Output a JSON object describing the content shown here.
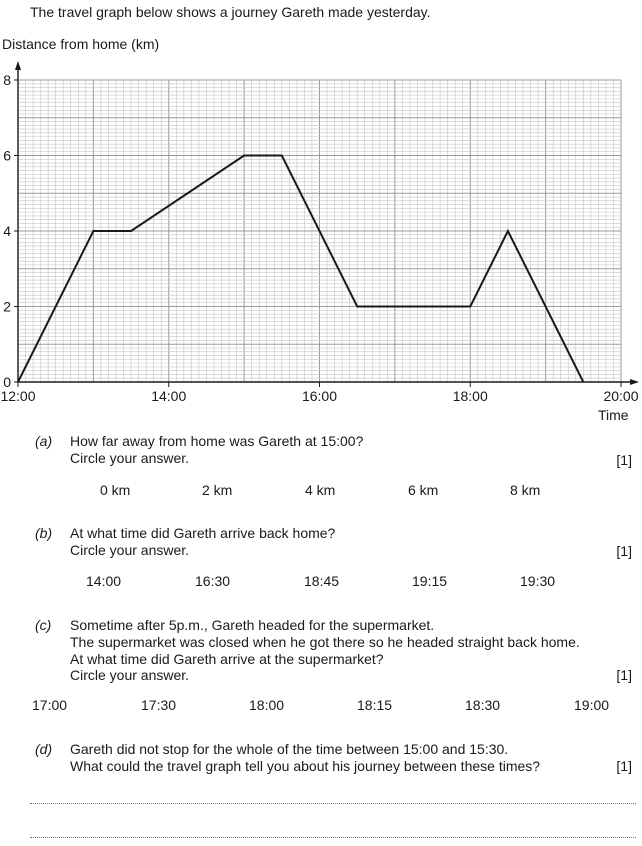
{
  "intro": "The travel graph below shows a journey Gareth made yesterday.",
  "chart_data": {
    "type": "line",
    "title": "",
    "ylabel": "Distance from home (km)",
    "xlabel": "Time",
    "x_ticks": [
      "12:00",
      "14:00",
      "16:00",
      "18:00",
      "20:00"
    ],
    "y_ticks": [
      "0",
      "2",
      "4",
      "6",
      "8"
    ],
    "xlim": [
      "12:00",
      "20:00"
    ],
    "ylim": [
      0,
      8
    ],
    "grid": true,
    "series": [
      {
        "points": [
          {
            "x": "12:00",
            "y": 0
          },
          {
            "x": "13:00",
            "y": 4
          },
          {
            "x": "13:30",
            "y": 4
          },
          {
            "x": "15:00",
            "y": 6
          },
          {
            "x": "15:30",
            "y": 6
          },
          {
            "x": "16:30",
            "y": 2
          },
          {
            "x": "18:00",
            "y": 2
          },
          {
            "x": "18:30",
            "y": 4
          },
          {
            "x": "19:30",
            "y": 0
          }
        ]
      }
    ]
  },
  "questions": [
    {
      "label": "(a)",
      "lines": [
        "How far away from home was Gareth at 15:00?",
        "Circle your answer."
      ],
      "marks": "[1]",
      "options": [
        "0 km",
        "2 km",
        "4 km",
        "6 km",
        "8 km"
      ]
    },
    {
      "label": "(b)",
      "lines": [
        "At what time did Gareth arrive back home?",
        "Circle your answer."
      ],
      "marks": "[1]",
      "options": [
        "14:00",
        "16:30",
        "18:45",
        "19:15",
        "19:30"
      ]
    },
    {
      "label": "(c)",
      "lines": [
        "Sometime after 5p.m., Gareth headed for the supermarket.",
        "The supermarket was closed when he got there so he headed straight back home.",
        "At what time did Gareth arrive at the supermarket?",
        "Circle your answer."
      ],
      "marks": "[1]",
      "options": [
        "17:00",
        "17:30",
        "18:00",
        "18:15",
        "18:30",
        "19:00"
      ]
    },
    {
      "label": "(d)",
      "lines": [
        "Gareth did not stop for the whole of the time between 15:00 and 15:30.",
        "What could the travel graph tell you about his journey between these times?"
      ],
      "marks": "[1]",
      "options": []
    }
  ]
}
